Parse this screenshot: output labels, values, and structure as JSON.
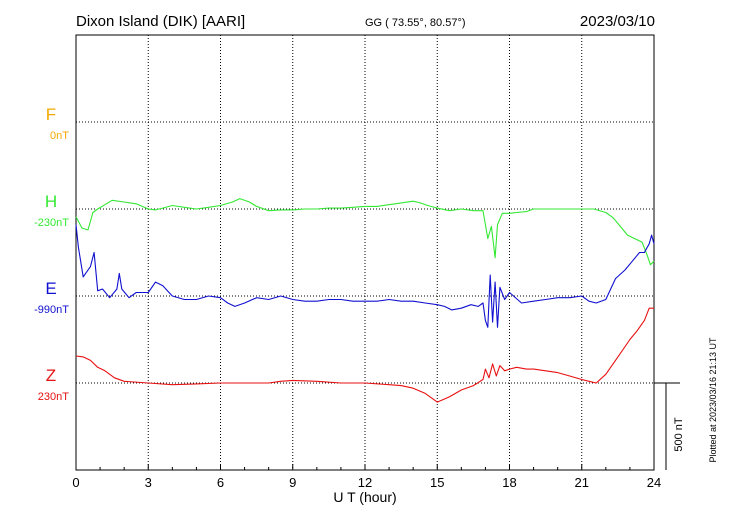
{
  "header": {
    "station": "Dixon Island (DIK)  [AARI]",
    "coords": "GG ( 73.55°,  80.57°)",
    "date": "2023/03/10"
  },
  "side_note": "Plotted at 2023/03/16 21:13 UT",
  "chart_data": {
    "type": "line",
    "xlabel": "U T (hour)",
    "xlim": [
      0,
      24
    ],
    "xticks": [
      0,
      3,
      6,
      9,
      12,
      15,
      18,
      21,
      24
    ],
    "grid": true,
    "scale_bar": {
      "label": "500 nT",
      "value": 500
    },
    "series": [
      {
        "name": "F",
        "baseline_label": "0nT",
        "color": "#f2a900",
        "x": [],
        "y": []
      },
      {
        "name": "H",
        "baseline_label": "-230nT",
        "color": "#33e833",
        "x": [
          0.0,
          0.25,
          0.5,
          0.7,
          0.9,
          1.2,
          1.5,
          2.0,
          2.5,
          3.0,
          3.3,
          3.6,
          4.0,
          4.5,
          5.0,
          5.5,
          6.0,
          6.5,
          6.8,
          7.2,
          7.5,
          8.0,
          8.5,
          9.0,
          9.5,
          10.0,
          10.5,
          11.0,
          11.5,
          12.0,
          12.5,
          13.0,
          13.5,
          14.0,
          14.3,
          14.6,
          15.0,
          15.5,
          16.0,
          16.5,
          16.9,
          17.0,
          17.1,
          17.25,
          17.4,
          17.5,
          17.7,
          18.0,
          18.3,
          18.7,
          19.0,
          19.5,
          20.0,
          20.5,
          21.0,
          21.5,
          22.0,
          22.3,
          22.6,
          22.9,
          23.2,
          23.5,
          23.7,
          23.85,
          24.0
        ],
        "y": [
          -45,
          -110,
          -120,
          -20,
          0,
          25,
          50,
          40,
          30,
          0,
          -5,
          5,
          20,
          10,
          0,
          10,
          20,
          40,
          60,
          40,
          15,
          -10,
          -5,
          -5,
          0,
          0,
          5,
          5,
          10,
          15,
          15,
          25,
          35,
          45,
          35,
          20,
          5,
          -10,
          0,
          -10,
          -10,
          -90,
          -170,
          -100,
          -280,
          -90,
          -25,
          -25,
          -20,
          -15,
          0,
          0,
          0,
          0,
          0,
          0,
          -20,
          -50,
          -100,
          -150,
          -170,
          -190,
          -260,
          -320,
          -300
        ]
      },
      {
        "name": "E",
        "baseline_label": "-990nT",
        "color": "#1010d0",
        "x": [
          0.0,
          0.1,
          0.3,
          0.6,
          0.75,
          0.9,
          1.1,
          1.4,
          1.7,
          1.8,
          1.9,
          2.2,
          2.5,
          3.0,
          3.3,
          3.6,
          4.0,
          4.5,
          5.0,
          5.5,
          6.0,
          6.3,
          6.6,
          7.0,
          7.5,
          8.0,
          8.5,
          9.0,
          9.5,
          10.0,
          10.5,
          11.0,
          11.5,
          12.0,
          12.5,
          13.0,
          13.5,
          14.0,
          14.5,
          15.0,
          15.3,
          15.6,
          16.0,
          16.4,
          16.7,
          16.9,
          17.0,
          17.1,
          17.2,
          17.3,
          17.4,
          17.5,
          17.6,
          17.8,
          18.0,
          18.5,
          19.0,
          19.5,
          20.0,
          20.5,
          21.0,
          21.3,
          21.6,
          22.0,
          22.4,
          22.8,
          23.1,
          23.4,
          23.6,
          23.8,
          23.9,
          24.0
        ],
        "y": [
          410,
          280,
          110,
          170,
          250,
          30,
          40,
          -10,
          40,
          130,
          40,
          -10,
          20,
          20,
          80,
          60,
          0,
          -20,
          -20,
          0,
          -10,
          -40,
          -60,
          -40,
          -10,
          -20,
          0,
          -20,
          -30,
          -30,
          -20,
          -20,
          -30,
          -30,
          -30,
          -20,
          -30,
          -30,
          -40,
          -50,
          -60,
          -80,
          -70,
          -50,
          -60,
          -40,
          -140,
          -180,
          120,
          -150,
          80,
          -180,
          50,
          -20,
          20,
          -40,
          -30,
          -20,
          -10,
          -10,
          0,
          -30,
          -40,
          -20,
          100,
          150,
          200,
          250,
          250,
          300,
          350,
          300
        ]
      },
      {
        "name": "Z",
        "baseline_label": "230nT",
        "color": "#e81010",
        "x": [
          0.0,
          0.3,
          0.6,
          0.9,
          1.2,
          1.6,
          2.0,
          3.0,
          4.0,
          5.0,
          6.0,
          7.0,
          8.0,
          8.5,
          9.0,
          10.0,
          11.0,
          12.0,
          13.0,
          13.5,
          14.0,
          14.5,
          15.0,
          15.5,
          16.0,
          16.5,
          16.9,
          17.0,
          17.15,
          17.3,
          17.45,
          17.6,
          17.8,
          18.0,
          18.3,
          18.7,
          19.0,
          19.5,
          20.0,
          20.5,
          21.0,
          21.3,
          21.6,
          22.0,
          22.5,
          23.0,
          23.3,
          23.6,
          23.8,
          24.0
        ],
        "y": [
          155,
          150,
          130,
          90,
          70,
          30,
          10,
          0,
          -10,
          -5,
          0,
          0,
          0,
          10,
          15,
          10,
          0,
          0,
          -10,
          -15,
          -30,
          -60,
          -110,
          -80,
          -40,
          -15,
          20,
          80,
          30,
          110,
          40,
          100,
          70,
          80,
          90,
          80,
          80,
          70,
          60,
          40,
          20,
          10,
          0,
          50,
          150,
          250,
          300,
          360,
          430,
          430
        ]
      }
    ]
  }
}
